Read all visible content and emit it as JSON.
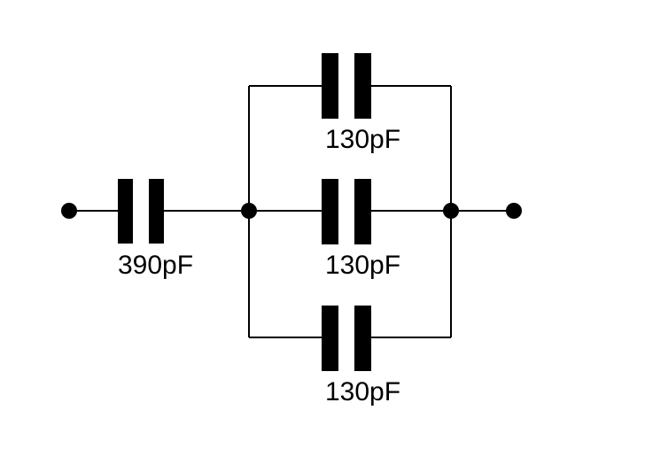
{
  "components": {
    "series_cap": {
      "label": "390pF"
    },
    "parallel_cap_top": {
      "label": "130pF"
    },
    "parallel_cap_middle": {
      "label": "130pF"
    },
    "parallel_cap_bottom": {
      "label": "130pF"
    }
  },
  "colors": {
    "ink": "#000000",
    "background": "#ffffff"
  }
}
